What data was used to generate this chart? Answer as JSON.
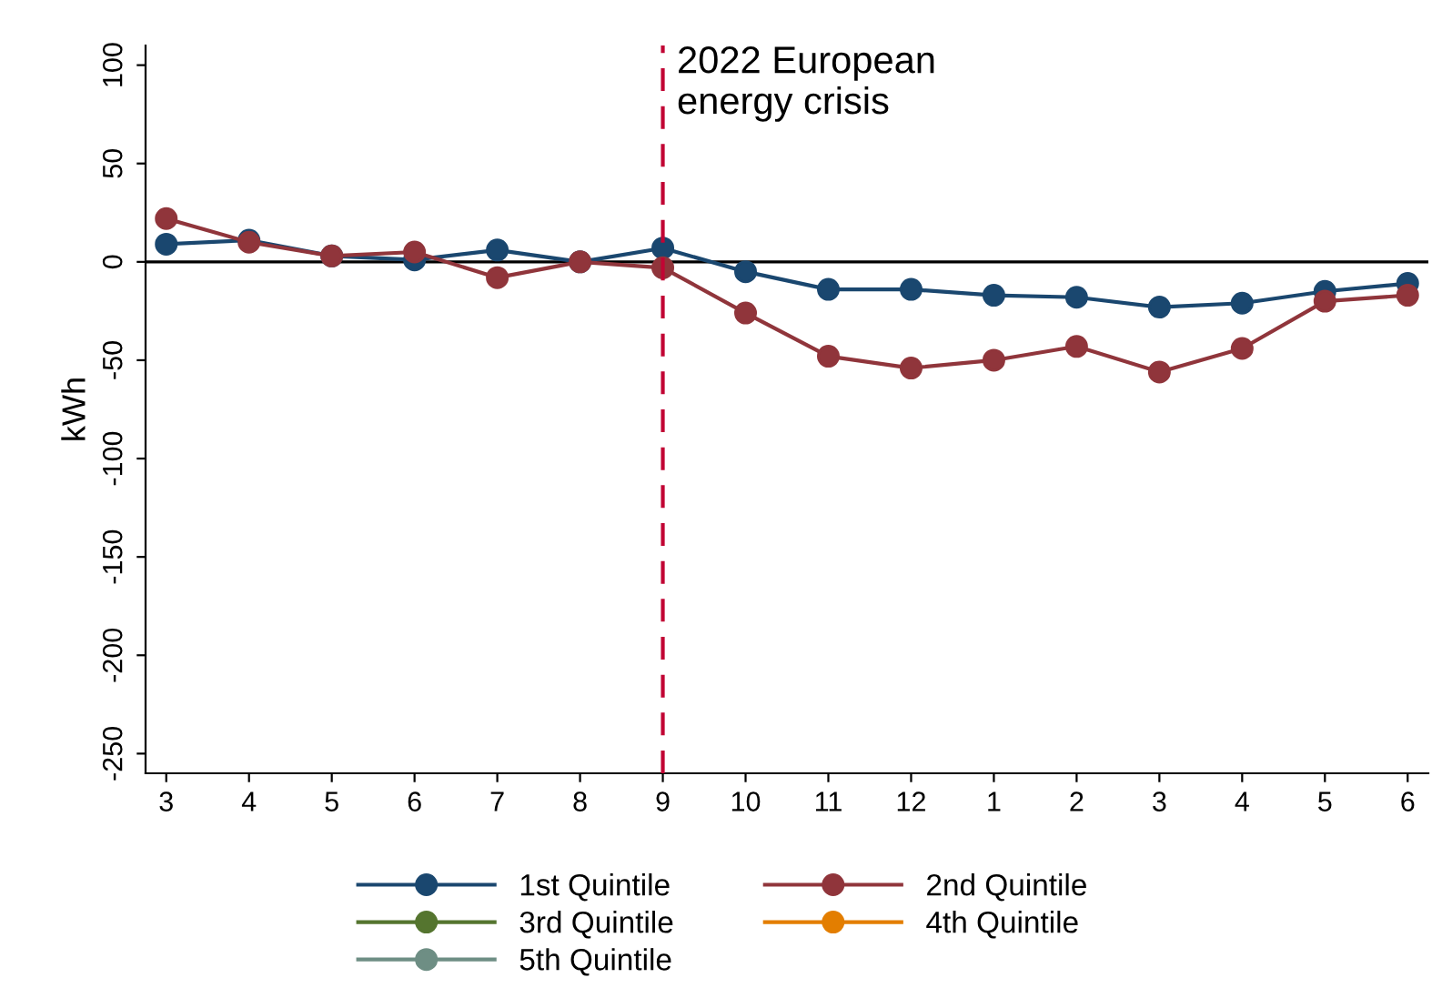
{
  "chart_data": {
    "type": "line",
    "ylabel": "kWh",
    "categories": [
      "3",
      "4",
      "5",
      "6",
      "7",
      "8",
      "9",
      "10",
      "11",
      "12",
      "1",
      "2",
      "3",
      "4",
      "5",
      "6"
    ],
    "series": [
      {
        "name": "1st Quintile",
        "color": "#1a476f",
        "values": [
          9,
          11,
          3,
          1,
          6,
          0,
          7,
          -5,
          -14,
          -14,
          -17,
          -18,
          -23,
          -21,
          -15,
          -11
        ]
      },
      {
        "name": "2nd Quintile",
        "color": "#90353b",
        "values": [
          22,
          10,
          3,
          5,
          -8,
          0,
          -3,
          -26,
          -48,
          -54,
          -50,
          -43,
          -56,
          -44,
          -20,
          -17
        ]
      },
      {
        "name": "3rd Quintile",
        "color": "#55752f",
        "values": [
          null,
          null,
          null,
          null,
          null,
          null,
          null,
          null,
          null,
          null,
          null,
          null,
          null,
          null,
          null,
          null
        ]
      },
      {
        "name": "4th Quintile",
        "color": "#e37e00",
        "values": [
          null,
          null,
          null,
          null,
          null,
          null,
          null,
          null,
          null,
          null,
          null,
          null,
          null,
          null,
          null,
          null
        ]
      },
      {
        "name": "5th Quintile",
        "color": "#6e8e84",
        "values": [
          null,
          null,
          null,
          null,
          null,
          null,
          null,
          null,
          null,
          null,
          null,
          null,
          null,
          null,
          null,
          null
        ]
      }
    ],
    "ylim": [
      -260,
      110
    ],
    "yticks": [
      -250,
      -200,
      -150,
      -100,
      -50,
      0,
      50,
      100
    ],
    "ref_lines": [
      {
        "axis": "y",
        "value": 0,
        "label": null,
        "color": "#000000",
        "line_style": "solid"
      },
      {
        "axis": "x",
        "value": "9",
        "label": "2022 European\nenergy crisis",
        "color": "#c10534",
        "line_style": "dashed"
      }
    ],
    "grid": false,
    "legend": "bottom",
    "marker": "circle",
    "line_style": "solid"
  }
}
